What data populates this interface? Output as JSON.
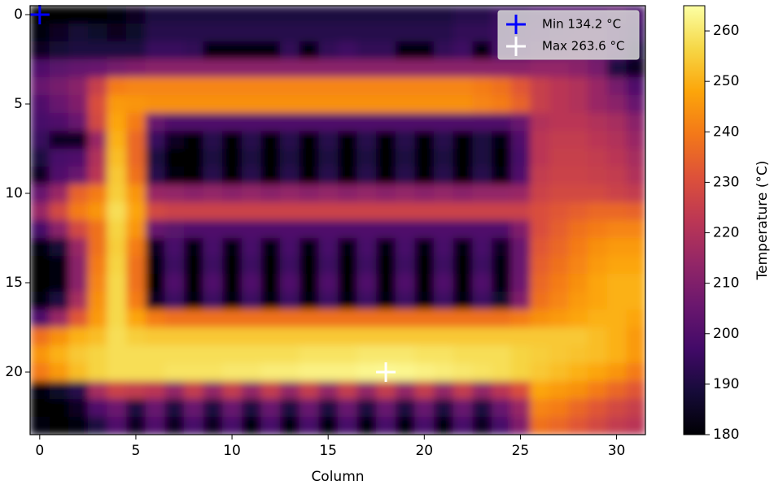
{
  "chart_data": {
    "type": "heatmap",
    "colormap": "inferno",
    "xlabel": "Column",
    "colorbar_label": "Temperature (°C)",
    "xlim": [
      -0.5,
      31.5
    ],
    "xticks": [
      0,
      5,
      10,
      15,
      20,
      25,
      30
    ],
    "ylim": [
      23.5,
      -0.5
    ],
    "yticks": [
      0,
      5,
      10,
      15,
      20
    ],
    "clim": [
      180,
      265
    ],
    "cticks": [
      180,
      190,
      200,
      210,
      220,
      230,
      240,
      250,
      260
    ],
    "legend": "upper right",
    "markers": [
      {
        "label": "Min 134.2 °C",
        "x": 0,
        "y": 0,
        "color": "#0000ff"
      },
      {
        "label": "Max 263.6 °C",
        "x": 18,
        "y": 20,
        "color": "#ffffff"
      }
    ],
    "values": [
      [
        134.2,
        180,
        180,
        180,
        182,
        185,
        190,
        190,
        190,
        190,
        190,
        190,
        190,
        190,
        190,
        190,
        190,
        190,
        190,
        190,
        190,
        190,
        192,
        192,
        195,
        195,
        198,
        200,
        200,
        200,
        202,
        198
      ],
      [
        182,
        185,
        188,
        186,
        184,
        186,
        192,
        192,
        192,
        192,
        192,
        192,
        192,
        192,
        192,
        192,
        192,
        192,
        192,
        192,
        192,
        192,
        194,
        194,
        196,
        198,
        200,
        202,
        204,
        205,
        200,
        195
      ],
      [
        185,
        188,
        190,
        190,
        190,
        190,
        195,
        195,
        194,
        182,
        182,
        182,
        182,
        194,
        182,
        194,
        196,
        194,
        194,
        182,
        182,
        194,
        196,
        182,
        198,
        200,
        204,
        206,
        208,
        205,
        200,
        190
      ],
      [
        200,
        202,
        204,
        205,
        208,
        210,
        212,
        212,
        212,
        212,
        212,
        212,
        212,
        212,
        212,
        212,
        212,
        212,
        212,
        212,
        212,
        212,
        212,
        212,
        212,
        212,
        214,
        214,
        212,
        208,
        190,
        185
      ],
      [
        205,
        208,
        212,
        225,
        240,
        242,
        242,
        242,
        242,
        242,
        242,
        242,
        242,
        242,
        242,
        242,
        242,
        242,
        242,
        242,
        242,
        242,
        242,
        240,
        238,
        232,
        225,
        222,
        220,
        215,
        208,
        200
      ],
      [
        200,
        205,
        210,
        230,
        246,
        245,
        244,
        244,
        244,
        244,
        244,
        244,
        244,
        244,
        244,
        244,
        244,
        244,
        244,
        244,
        244,
        244,
        244,
        242,
        240,
        235,
        225,
        222,
        220,
        215,
        212,
        205
      ],
      [
        198,
        200,
        205,
        228,
        248,
        240,
        205,
        200,
        200,
        200,
        200,
        200,
        200,
        200,
        200,
        200,
        200,
        200,
        200,
        200,
        200,
        200,
        200,
        200,
        200,
        205,
        220,
        222,
        222,
        220,
        218,
        212
      ],
      [
        195,
        185,
        185,
        215,
        250,
        236,
        195,
        185,
        180,
        192,
        180,
        192,
        180,
        192,
        180,
        192,
        180,
        192,
        180,
        192,
        180,
        192,
        180,
        190,
        182,
        200,
        222,
        224,
        224,
        222,
        220,
        215
      ],
      [
        190,
        198,
        200,
        220,
        252,
        236,
        190,
        180,
        180,
        190,
        180,
        190,
        180,
        190,
        180,
        190,
        180,
        190,
        180,
        190,
        180,
        190,
        180,
        190,
        180,
        198,
        222,
        225,
        225,
        224,
        222,
        218
      ],
      [
        185,
        200,
        205,
        222,
        254,
        238,
        192,
        182,
        180,
        192,
        180,
        192,
        180,
        192,
        180,
        192,
        180,
        192,
        180,
        192,
        180,
        192,
        180,
        192,
        182,
        200,
        224,
        226,
        226,
        225,
        224,
        220
      ],
      [
        205,
        215,
        235,
        240,
        255,
        245,
        215,
        214,
        212,
        214,
        212,
        214,
        212,
        214,
        212,
        214,
        212,
        214,
        212,
        214,
        212,
        214,
        212,
        214,
        214,
        215,
        226,
        228,
        228,
        228,
        226,
        224
      ],
      [
        215,
        228,
        240,
        245,
        258,
        248,
        228,
        226,
        226,
        226,
        226,
        226,
        226,
        226,
        226,
        226,
        226,
        226,
        226,
        226,
        226,
        226,
        226,
        226,
        226,
        226,
        230,
        232,
        234,
        236,
        236,
        235
      ],
      [
        198,
        212,
        228,
        238,
        256,
        245,
        205,
        202,
        200,
        200,
        200,
        200,
        200,
        200,
        200,
        200,
        200,
        200,
        200,
        200,
        200,
        200,
        200,
        200,
        200,
        210,
        230,
        234,
        238,
        240,
        242,
        242
      ],
      [
        182,
        188,
        215,
        238,
        255,
        240,
        185,
        198,
        182,
        198,
        182,
        198,
        182,
        198,
        182,
        198,
        182,
        198,
        182,
        198,
        182,
        198,
        182,
        198,
        185,
        205,
        232,
        236,
        240,
        244,
        246,
        246
      ],
      [
        180,
        182,
        212,
        240,
        256,
        238,
        182,
        196,
        180,
        196,
        180,
        196,
        180,
        196,
        180,
        196,
        180,
        196,
        180,
        196,
        180,
        196,
        180,
        196,
        182,
        205,
        234,
        238,
        242,
        246,
        248,
        248
      ],
      [
        180,
        182,
        212,
        242,
        257,
        238,
        180,
        200,
        180,
        200,
        180,
        200,
        180,
        200,
        180,
        200,
        180,
        200,
        180,
        200,
        180,
        200,
        180,
        200,
        182,
        206,
        236,
        240,
        244,
        248,
        250,
        250
      ],
      [
        182,
        190,
        218,
        244,
        257,
        240,
        185,
        196,
        182,
        196,
        182,
        196,
        182,
        196,
        182,
        196,
        182,
        196,
        182,
        196,
        182,
        196,
        182,
        196,
        186,
        210,
        238,
        242,
        246,
        248,
        250,
        250
      ],
      [
        200,
        215,
        232,
        246,
        257,
        248,
        240,
        238,
        238,
        238,
        238,
        238,
        238,
        238,
        238,
        238,
        238,
        238,
        238,
        238,
        238,
        238,
        238,
        238,
        238,
        240,
        244,
        246,
        248,
        250,
        250,
        248
      ],
      [
        238,
        244,
        250,
        252,
        258,
        255,
        254,
        254,
        254,
        254,
        254,
        254,
        254,
        254,
        254,
        254,
        254,
        254,
        254,
        254,
        254,
        254,
        254,
        254,
        254,
        254,
        254,
        254,
        254,
        252,
        250,
        246
      ],
      [
        245,
        250,
        254,
        256,
        258,
        258,
        258,
        258,
        258,
        258,
        258,
        258,
        258,
        258,
        259,
        259,
        259,
        260,
        260,
        260,
        259,
        259,
        258,
        258,
        258,
        256,
        255,
        254,
        253,
        252,
        250,
        246
      ],
      [
        240,
        246,
        252,
        256,
        258,
        258,
        258,
        259,
        259,
        259,
        260,
        260,
        261,
        261,
        262,
        262,
        262,
        263,
        263.6,
        263,
        262,
        261,
        260,
        259,
        258,
        256,
        254,
        252,
        250,
        248,
        245,
        240
      ],
      [
        182,
        186,
        192,
        218,
        226,
        224,
        222,
        214,
        224,
        214,
        224,
        214,
        224,
        214,
        224,
        214,
        224,
        214,
        224,
        214,
        224,
        214,
        224,
        214,
        222,
        230,
        248,
        246,
        244,
        240,
        236,
        232
      ],
      [
        180,
        180,
        185,
        200,
        206,
        190,
        205,
        190,
        205,
        190,
        205,
        190,
        205,
        190,
        205,
        190,
        205,
        190,
        205,
        190,
        205,
        190,
        205,
        190,
        205,
        215,
        242,
        240,
        236,
        232,
        228,
        225
      ],
      [
        182,
        180,
        182,
        190,
        200,
        185,
        200,
        185,
        198,
        185,
        198,
        182,
        198,
        182,
        198,
        182,
        198,
        182,
        198,
        182,
        198,
        182,
        198,
        185,
        198,
        210,
        238,
        236,
        232,
        228,
        224,
        222
      ]
    ]
  }
}
